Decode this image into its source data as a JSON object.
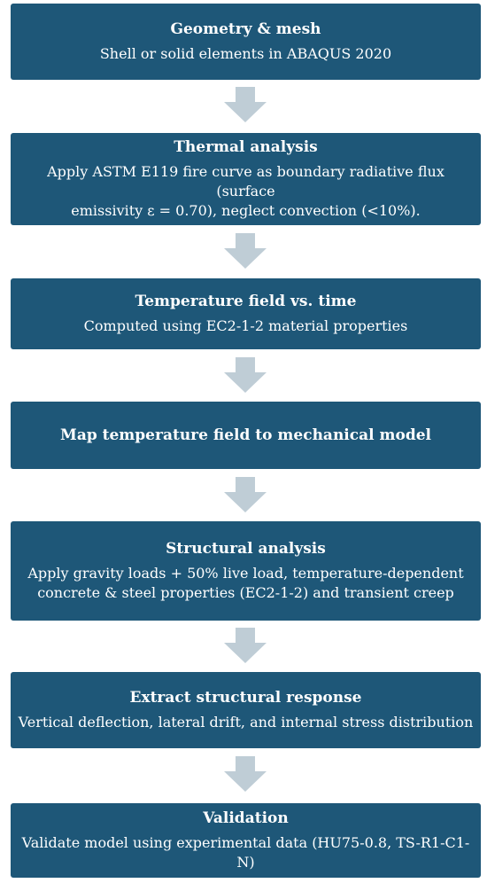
{
  "steps": [
    {
      "title": "Geometry & mesh",
      "desc": "Shell or solid elements in ABAQUS 2020"
    },
    {
      "title": "Thermal analysis",
      "desc_lines": [
        "Apply ASTM E119 fire curve as boundary radiative flux (surface",
        "emissivity ε = 0.70), neglect convection (<10%)."
      ]
    },
    {
      "title": "Temperature field vs. time",
      "desc": "Computed using EC2-1-2 material properties"
    },
    {
      "title": "Map temperature field to mechanical model"
    },
    {
      "title": "Structural analysis",
      "desc_lines": [
        "Apply gravity loads + 50% live load, temperature-dependent",
        "concrete & steel properties (EC2-1-2) and transient creep"
      ]
    },
    {
      "title": "Extract structural response",
      "desc": "Vertical deflection, lateral drift, and internal stress distribution"
    },
    {
      "title": "Validation",
      "desc": "Validate model using experimental data (HU75-0.8, TS-R1-C1-N)"
    }
  ],
  "colors": {
    "box": "#1e5778",
    "arrow": "#bfcdd6",
    "text": "#ffffff"
  }
}
